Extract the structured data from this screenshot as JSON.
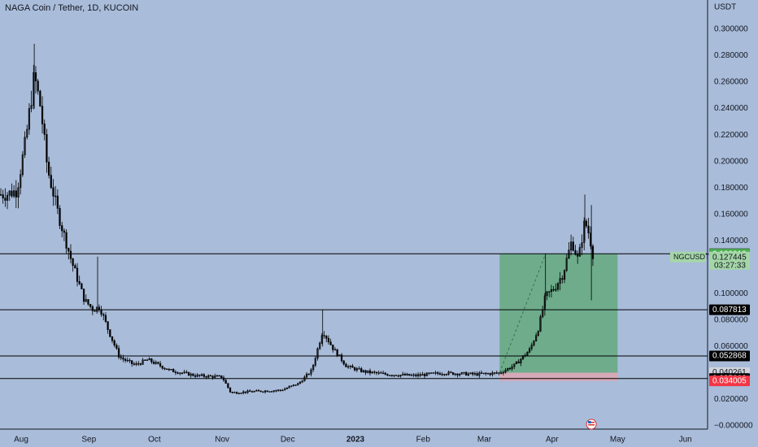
{
  "chart_title": "NAGA Coin / Tether, 1D, KUCOIN",
  "currency_label": "USDT",
  "colors": {
    "background": "#a9bcd9",
    "candle": "#000000",
    "axis_text": "#131722",
    "grid_line": "#131722",
    "long_profit_zone": "#5fa878",
    "long_loss_zone": "#d9a6b3",
    "price_tag_dark": "#000000",
    "price_tag_green": "#4caf50",
    "price_tag_red": "#f23645"
  },
  "chart_data": {
    "type": "candlestick",
    "symbol": "NGCUSDT",
    "xlabels": [
      "Aug",
      "Sep",
      "Oct",
      "Nov",
      "Dec",
      "2023",
      "Feb",
      "Mar",
      "Apr",
      "May",
      "Jun"
    ],
    "ylim": [
      -0.02,
      0.31
    ],
    "y_ticks": [
      "0.300000",
      "0.280000",
      "0.260000",
      "0.240000",
      "0.220000",
      "0.200000",
      "0.180000",
      "0.160000",
      "0.140000",
      "0.120000",
      "0.100000",
      "0.080000",
      "0.060000",
      "0.040000",
      "0.020000",
      "−0.000000"
    ],
    "y_tick_values": [
      0.3,
      0.28,
      0.26,
      0.24,
      0.22,
      0.2,
      0.18,
      0.16,
      0.14,
      0.12,
      0.1,
      0.08,
      0.06,
      0.04,
      0.02,
      0.0
    ],
    "horizontal_levels": [
      0.130159,
      0.087813,
      0.052868,
      0.035803
    ],
    "price_tags": [
      {
        "label": "0.130159",
        "value": 0.130159,
        "style": "dark"
      },
      {
        "label": "0.129919",
        "value": 0.129919,
        "style": "green"
      },
      {
        "label": "0.087813",
        "value": 0.087813,
        "style": "dark"
      },
      {
        "label": "0.052868",
        "value": 0.052868,
        "style": "dark"
      },
      {
        "label": "0.040261",
        "value": 0.040261,
        "style": "light"
      },
      {
        "label": "0.035803",
        "value": 0.035803,
        "style": "dark"
      },
      {
        "label": "0.034005",
        "value": 0.034005,
        "style": "red"
      }
    ],
    "symbol_tag": {
      "symbol": "NGCUSDT",
      "price": "0.127445",
      "countdown": "03:27:33",
      "value": 0.127445
    },
    "long_position": {
      "entry": 0.040261,
      "target": 0.129919,
      "stop": 0.034005,
      "start": "2023-03-08",
      "end": "2023-05-01"
    },
    "price_path": [
      {
        "d": "2022-07-25",
        "p": 0.175
      },
      {
        "d": "2022-07-30",
        "p": 0.178
      },
      {
        "d": "2022-08-03",
        "p": 0.215
      },
      {
        "d": "2022-08-07",
        "p": 0.265
      },
      {
        "d": "2022-08-10",
        "p": 0.24
      },
      {
        "d": "2022-08-13",
        "p": 0.195
      },
      {
        "d": "2022-08-18",
        "p": 0.16
      },
      {
        "d": "2022-08-24",
        "p": 0.125
      },
      {
        "d": "2022-08-30",
        "p": 0.095
      },
      {
        "d": "2022-09-03",
        "p": 0.088
      },
      {
        "d": "2022-09-06",
        "p": 0.09
      },
      {
        "d": "2022-09-10",
        "p": 0.072
      },
      {
        "d": "2022-09-15",
        "p": 0.052
      },
      {
        "d": "2022-09-22",
        "p": 0.046
      },
      {
        "d": "2022-09-28",
        "p": 0.05
      },
      {
        "d": "2022-10-08",
        "p": 0.042
      },
      {
        "d": "2022-10-20",
        "p": 0.038
      },
      {
        "d": "2022-11-01",
        "p": 0.037
      },
      {
        "d": "2022-11-05",
        "p": 0.025
      },
      {
        "d": "2022-11-15",
        "p": 0.026
      },
      {
        "d": "2022-11-28",
        "p": 0.027
      },
      {
        "d": "2022-12-06",
        "p": 0.032
      },
      {
        "d": "2022-12-12",
        "p": 0.042
      },
      {
        "d": "2022-12-17",
        "p": 0.072
      },
      {
        "d": "2022-12-22",
        "p": 0.058
      },
      {
        "d": "2022-12-28",
        "p": 0.045
      },
      {
        "d": "2023-01-05",
        "p": 0.041
      },
      {
        "d": "2023-01-15",
        "p": 0.039
      },
      {
        "d": "2023-01-28",
        "p": 0.038
      },
      {
        "d": "2023-02-10",
        "p": 0.04
      },
      {
        "d": "2023-02-25",
        "p": 0.039
      },
      {
        "d": "2023-03-08",
        "p": 0.04
      },
      {
        "d": "2023-03-15",
        "p": 0.046
      },
      {
        "d": "2023-03-22",
        "p": 0.058
      },
      {
        "d": "2023-03-26",
        "p": 0.075
      },
      {
        "d": "2023-03-29",
        "p": 0.098
      },
      {
        "d": "2023-04-02",
        "p": 0.104
      },
      {
        "d": "2023-04-06",
        "p": 0.115
      },
      {
        "d": "2023-04-10",
        "p": 0.14
      },
      {
        "d": "2023-04-13",
        "p": 0.125
      },
      {
        "d": "2023-04-16",
        "p": 0.155
      },
      {
        "d": "2023-04-18",
        "p": 0.145
      },
      {
        "d": "2023-04-20",
        "p": 0.1275
      }
    ]
  }
}
